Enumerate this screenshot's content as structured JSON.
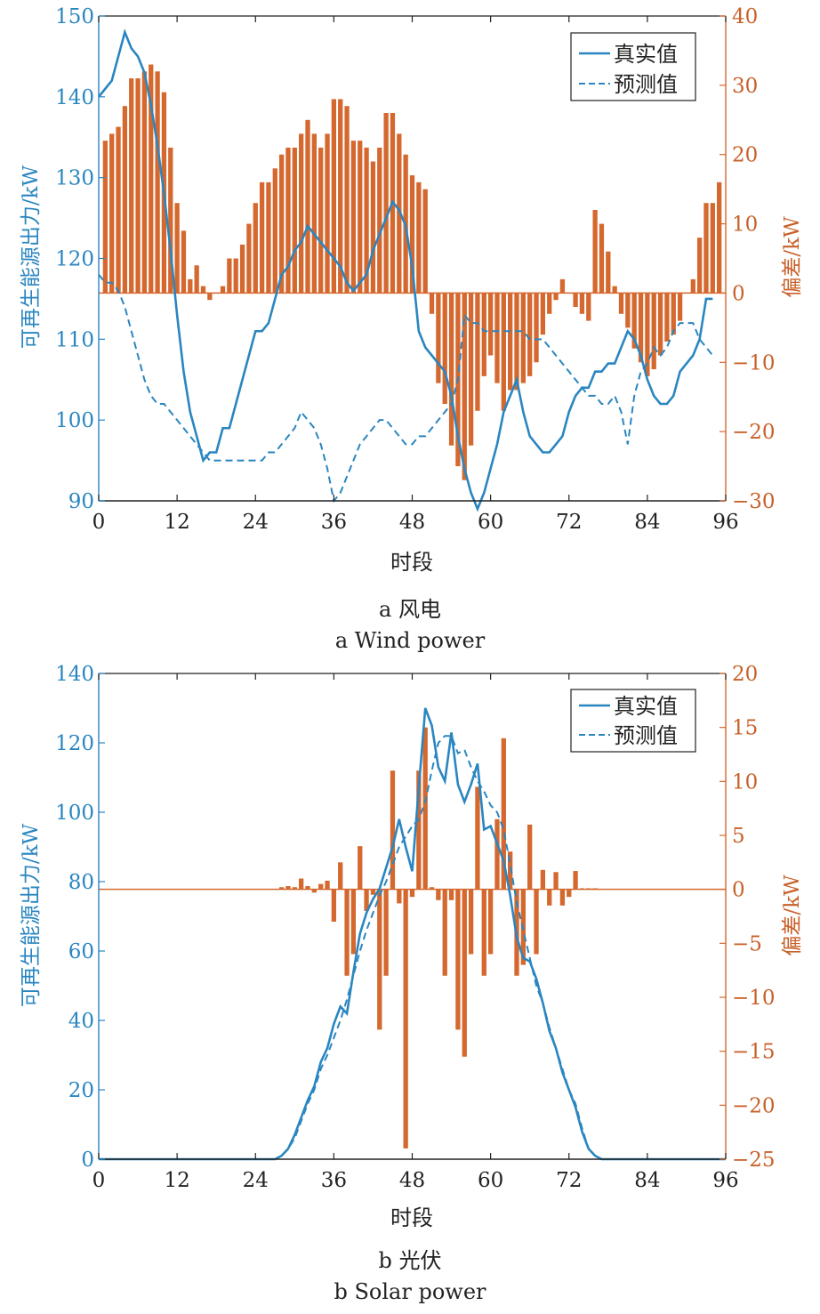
{
  "chart_data": [
    {
      "type": "bar",
      "caption_cn": "a  风电",
      "caption_en": "a  Wind power",
      "xlabel": "时段",
      "ylabel_left": "可再生能源出力/kW",
      "ylabel_right": "偏差/kW",
      "xlim": [
        0,
        96
      ],
      "ylim_left": [
        90,
        150
      ],
      "ylim_right": [
        -30,
        40
      ],
      "xticks": [
        0,
        12,
        24,
        36,
        48,
        60,
        72,
        84,
        96
      ],
      "yticks_left": [
        90,
        100,
        110,
        120,
        130,
        140,
        150
      ],
      "yticks_right": [
        -30,
        -20,
        -10,
        0,
        10,
        20,
        30,
        40
      ],
      "legend": {
        "position": "top-right",
        "entries": [
          "真实值",
          "预测值"
        ]
      },
      "colors": {
        "actual": "#2a86c0",
        "forecast": "#2a86c0",
        "deviation": "#d4682e"
      },
      "series": [
        {
          "name": "真实值",
          "axis": "left",
          "style": "solid",
          "x": [
            0,
            1,
            2,
            3,
            4,
            5,
            6,
            7,
            8,
            9,
            10,
            11,
            12,
            13,
            14,
            15,
            16,
            17,
            18,
            19,
            20,
            21,
            22,
            23,
            24,
            25,
            26,
            27,
            28,
            29,
            30,
            31,
            32,
            33,
            34,
            35,
            36,
            37,
            38,
            39,
            40,
            41,
            42,
            43,
            44,
            45,
            46,
            47,
            48,
            49,
            50,
            51,
            52,
            53,
            54,
            55,
            56,
            57,
            58,
            59,
            60,
            61,
            62,
            63,
            64,
            65,
            66,
            67,
            68,
            69,
            70,
            71,
            72,
            73,
            74,
            75,
            76,
            77,
            78,
            79,
            80,
            81,
            82,
            83,
            84,
            85,
            86,
            87,
            88,
            89,
            90,
            91,
            92,
            93,
            94
          ],
          "values": [
            140,
            141,
            142,
            145,
            148,
            146,
            145,
            143,
            139,
            134,
            128,
            121,
            113,
            106,
            101,
            98,
            95,
            96,
            96,
            99,
            99,
            102,
            105,
            108,
            111,
            111,
            112,
            115,
            118,
            119,
            121,
            122,
            124,
            123,
            122,
            121,
            120,
            119,
            117,
            116,
            117,
            118,
            121,
            123,
            125,
            127,
            126,
            124,
            119,
            111,
            109,
            108,
            107,
            106,
            103,
            98,
            94,
            91,
            89,
            91,
            94,
            97,
            101,
            103,
            105,
            101,
            98,
            97,
            96,
            96,
            97,
            98,
            101,
            103,
            104,
            104,
            106,
            106,
            107,
            107,
            109,
            111,
            110,
            108,
            105,
            103,
            102,
            102,
            103,
            106,
            107,
            108,
            110,
            115,
            115
          ]
        },
        {
          "name": "预测值",
          "axis": "left",
          "style": "dashed",
          "x": [
            0,
            1,
            2,
            3,
            4,
            5,
            6,
            7,
            8,
            9,
            10,
            11,
            12,
            13,
            14,
            15,
            16,
            17,
            18,
            19,
            20,
            21,
            22,
            23,
            24,
            25,
            26,
            27,
            28,
            29,
            30,
            31,
            32,
            33,
            34,
            35,
            36,
            37,
            38,
            39,
            40,
            41,
            42,
            43,
            44,
            45,
            46,
            47,
            48,
            49,
            50,
            51,
            52,
            53,
            54,
            55,
            56,
            57,
            58,
            59,
            60,
            61,
            62,
            63,
            64,
            65,
            66,
            67,
            68,
            69,
            70,
            71,
            72,
            73,
            74,
            75,
            76,
            77,
            78,
            79,
            80,
            81,
            82,
            83,
            84,
            85,
            86,
            87,
            88,
            89,
            90,
            91,
            92,
            93,
            94
          ],
          "values": [
            118,
            117,
            117,
            116,
            114,
            111,
            108,
            105,
            103,
            102,
            102,
            101,
            100,
            99,
            98,
            97,
            96,
            95,
            95,
            95,
            95,
            95,
            95,
            95,
            95,
            95,
            96,
            96,
            97,
            98,
            99,
            101,
            100,
            99,
            97,
            94,
            90,
            91,
            93,
            95,
            97,
            98,
            99,
            100,
            100,
            99,
            98,
            97,
            97,
            98,
            98,
            99,
            100,
            101,
            102,
            105,
            113,
            112,
            112,
            111,
            111,
            111,
            111,
            111,
            111,
            111,
            110,
            110,
            110,
            109,
            108,
            107,
            106,
            105,
            104,
            103,
            103,
            102,
            102,
            103,
            101,
            97,
            103,
            106,
            107,
            109,
            108,
            109,
            111,
            112,
            112,
            112,
            110,
            109,
            108
          ]
        },
        {
          "name": "偏差",
          "axis": "right",
          "style": "bar",
          "x": [
            1,
            2,
            3,
            4,
            5,
            6,
            7,
            8,
            9,
            10,
            11,
            12,
            13,
            14,
            15,
            16,
            17,
            18,
            19,
            20,
            21,
            22,
            23,
            24,
            25,
            26,
            27,
            28,
            29,
            30,
            31,
            32,
            33,
            34,
            35,
            36,
            37,
            38,
            39,
            40,
            41,
            42,
            43,
            44,
            45,
            46,
            47,
            48,
            49,
            50,
            51,
            52,
            53,
            54,
            55,
            56,
            57,
            58,
            59,
            60,
            61,
            62,
            63,
            64,
            65,
            66,
            67,
            68,
            69,
            70,
            71,
            72,
            73,
            74,
            75,
            76,
            77,
            78,
            79,
            80,
            81,
            82,
            83,
            84,
            85,
            86,
            87,
            88,
            89,
            90,
            91,
            92,
            93,
            94,
            95
          ],
          "values": [
            22,
            23,
            24,
            27,
            31,
            31,
            32,
            33,
            32,
            29,
            21,
            13,
            9,
            2,
            4,
            1,
            -1,
            0,
            1,
            5,
            5,
            7,
            10,
            13,
            16,
            16,
            18,
            20,
            21,
            21,
            23,
            25,
            23,
            21,
            23,
            28,
            28,
            27,
            22,
            22,
            21,
            19,
            21,
            26,
            26,
            23,
            20,
            17,
            16,
            15,
            -3,
            -13,
            -16,
            -22,
            -25,
            -27,
            -22,
            -17,
            -12,
            -9,
            -13,
            -17,
            -14,
            -14,
            -13,
            -12,
            -10,
            -6,
            -3,
            -1,
            2,
            0,
            -2,
            -3,
            -4,
            12,
            10,
            6,
            1,
            -3,
            -5,
            -8,
            -10,
            -12,
            -11,
            -9,
            -7,
            -6,
            -4,
            0,
            2,
            8,
            13,
            13,
            16
          ]
        }
      ]
    },
    {
      "type": "bar",
      "caption_cn": "b  光伏",
      "caption_en": "b  Solar power",
      "xlabel": "时段",
      "ylabel_left": "可再生能源出力/kW",
      "ylabel_right": "偏差/kW",
      "xlim": [
        0,
        96
      ],
      "ylim_left": [
        0,
        140
      ],
      "ylim_right": [
        -25,
        20
      ],
      "xticks": [
        0,
        12,
        24,
        36,
        48,
        60,
        72,
        84,
        96
      ],
      "yticks_left": [
        0,
        20,
        40,
        60,
        80,
        100,
        120,
        140
      ],
      "yticks_right": [
        -25,
        -20,
        -15,
        -10,
        -5,
        0,
        5,
        10,
        15,
        20
      ],
      "legend": {
        "position": "top-right",
        "entries": [
          "真实值",
          "预测值"
        ]
      },
      "colors": {
        "actual": "#2a86c0",
        "forecast": "#2a86c0",
        "deviation": "#d4682e"
      },
      "series": [
        {
          "name": "真实值",
          "axis": "left",
          "style": "solid",
          "x": [
            0,
            12,
            24,
            27,
            28,
            29,
            30,
            31,
            32,
            33,
            34,
            35,
            36,
            37,
            38,
            39,
            40,
            41,
            42,
            43,
            44,
            45,
            46,
            47,
            48,
            49,
            50,
            51,
            52,
            53,
            54,
            55,
            56,
            57,
            58,
            59,
            60,
            61,
            62,
            63,
            64,
            65,
            66,
            67,
            68,
            69,
            70,
            71,
            72,
            73,
            74,
            75,
            76,
            77,
            78,
            84,
            96
          ],
          "values": [
            0,
            0,
            0,
            0,
            1,
            3,
            7,
            12,
            17,
            21,
            28,
            32,
            39,
            44,
            42,
            54,
            65,
            71,
            75,
            78,
            84,
            90,
            98,
            90,
            83,
            107,
            130,
            125,
            113,
            109,
            123,
            108,
            103,
            108,
            114,
            95,
            96,
            91,
            86,
            76,
            64,
            58,
            57,
            52,
            45,
            37,
            32,
            25,
            20,
            15,
            8,
            3,
            1,
            0,
            0,
            0,
            0
          ]
        },
        {
          "name": "预测值",
          "axis": "left",
          "style": "dashed",
          "x": [
            0,
            12,
            24,
            27,
            28,
            29,
            30,
            31,
            32,
            33,
            34,
            35,
            36,
            37,
            38,
            39,
            40,
            41,
            42,
            43,
            44,
            45,
            46,
            47,
            48,
            49,
            50,
            51,
            52,
            53,
            54,
            55,
            56,
            57,
            58,
            59,
            60,
            61,
            62,
            63,
            64,
            65,
            66,
            67,
            68,
            69,
            70,
            71,
            72,
            73,
            74,
            75,
            76,
            77,
            78,
            84,
            96
          ],
          "values": [
            0,
            0,
            0,
            0,
            1,
            3,
            6,
            11,
            16,
            20,
            26,
            30,
            35,
            40,
            46,
            53,
            60,
            66,
            71,
            76,
            80,
            85,
            90,
            93,
            96,
            98,
            103,
            112,
            120,
            122,
            122,
            117,
            118,
            113,
            109,
            106,
            102,
            100,
            95,
            85,
            74,
            66,
            58,
            50,
            45,
            38,
            32,
            26,
            20,
            16,
            9,
            3,
            1,
            0,
            0,
            0,
            0
          ]
        },
        {
          "name": "偏差",
          "axis": "right",
          "style": "bar",
          "x": [
            28,
            29,
            30,
            31,
            32,
            33,
            34,
            35,
            36,
            37,
            38,
            39,
            40,
            41,
            42,
            43,
            44,
            45,
            46,
            47,
            48,
            49,
            50,
            51,
            52,
            53,
            54,
            55,
            56,
            57,
            58,
            59,
            60,
            61,
            62,
            63,
            64,
            65,
            66,
            67,
            68,
            69,
            70,
            71,
            72,
            73,
            74,
            75,
            76
          ],
          "values": [
            0.2,
            0.3,
            0.2,
            1,
            0.3,
            -0.3,
            0.5,
            0.8,
            -3,
            2.5,
            -8,
            -6,
            4,
            -2,
            -0.5,
            -13,
            -8,
            11,
            -1.3,
            -24,
            -0.7,
            11,
            15,
            0.2,
            -1,
            -8,
            -1,
            -13,
            -15.5,
            -6,
            9.5,
            -8,
            -6,
            6.5,
            14,
            3.5,
            -8,
            -7,
            6,
            -6,
            1.8,
            -1.5,
            1.6,
            -1.5,
            -0.7,
            1.7,
            0.1,
            0.1,
            0.1
          ]
        }
      ]
    }
  ]
}
